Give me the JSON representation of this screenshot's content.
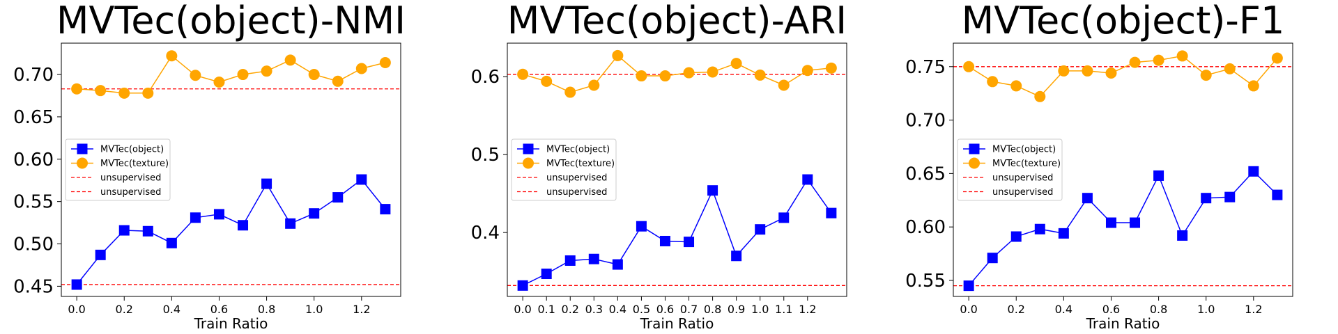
{
  "chart_data": [
    {
      "type": "line",
      "title": "MVTec(object)-NMI",
      "xlabel": "Train Ratio",
      "ylabel": "",
      "x": [
        0.0,
        0.1,
        0.2,
        0.3,
        0.4,
        0.5,
        0.6,
        0.7,
        0.8,
        0.9,
        1.0,
        1.1,
        1.2,
        1.3
      ],
      "xticks": [
        "0.0",
        "0.2",
        "0.4",
        "0.6",
        "0.8",
        "1.0",
        "1.2"
      ],
      "xlim": [
        -0.065,
        1.365
      ],
      "yticks": [
        "0.45",
        "0.50",
        "0.55",
        "0.60",
        "0.65",
        "0.70"
      ],
      "ylim": [
        0.438,
        0.737
      ],
      "legend_position": "center-left",
      "grid": false,
      "series": [
        {
          "name": "MVTec(object)",
          "color": "#0000ff",
          "marker": "square",
          "values": [
            0.452,
            0.487,
            0.516,
            0.515,
            0.501,
            0.531,
            0.535,
            0.522,
            0.571,
            0.524,
            0.536,
            0.555,
            0.576,
            0.541
          ]
        },
        {
          "name": "MVTec(texture)",
          "color": "#ffa500",
          "marker": "circle",
          "values": [
            0.683,
            0.681,
            0.678,
            0.678,
            0.722,
            0.699,
            0.691,
            0.7,
            0.704,
            0.717,
            0.7,
            0.692,
            0.707,
            0.714
          ]
        }
      ],
      "reference_lines": [
        {
          "name": "unsupervised",
          "color": "#ff0000",
          "y": 0.452
        },
        {
          "name": "unsupervised",
          "color": "#ff0000",
          "y": 0.683
        }
      ]
    },
    {
      "type": "line",
      "title": "MVTec(object)-ARI",
      "xlabel": "Train Ratio",
      "ylabel": "",
      "x": [
        0.0,
        0.1,
        0.2,
        0.3,
        0.4,
        0.5,
        0.6,
        0.7,
        0.8,
        0.9,
        1.0,
        1.1,
        1.2,
        1.3
      ],
      "xticks": [
        "0.0",
        "0.1",
        "0.2",
        "0.3",
        "0.4",
        "0.5",
        "0.6",
        "0.7",
        "0.8",
        "0.9",
        "1.0",
        "1.1",
        "1.2"
      ],
      "xlim": [
        -0.065,
        1.365
      ],
      "yticks": [
        "0.4",
        "0.5",
        "0.6"
      ],
      "ylim": [
        0.318,
        0.643
      ],
      "legend_position": "center-left",
      "grid": false,
      "series": [
        {
          "name": "MVTec(object)",
          "color": "#0000ff",
          "marker": "square",
          "values": [
            0.332,
            0.347,
            0.364,
            0.366,
            0.359,
            0.408,
            0.389,
            0.388,
            0.454,
            0.37,
            0.404,
            0.419,
            0.468,
            0.425
          ]
        },
        {
          "name": "MVTec(texture)",
          "color": "#ffa500",
          "marker": "circle",
          "values": [
            0.603,
            0.594,
            0.58,
            0.589,
            0.627,
            0.601,
            0.601,
            0.605,
            0.606,
            0.617,
            0.602,
            0.589,
            0.608,
            0.611
          ]
        }
      ],
      "reference_lines": [
        {
          "name": "unsupervised",
          "color": "#ff0000",
          "y": 0.332
        },
        {
          "name": "unsupervised",
          "color": "#ff0000",
          "y": 0.603
        }
      ]
    },
    {
      "type": "line",
      "title": "MVTec(object)-F1",
      "xlabel": "Train Ratio",
      "ylabel": "",
      "x": [
        0.0,
        0.1,
        0.2,
        0.3,
        0.4,
        0.5,
        0.6,
        0.7,
        0.8,
        0.9,
        1.0,
        1.1,
        1.2,
        1.3
      ],
      "xticks": [
        "0.0",
        "0.2",
        "0.4",
        "0.6",
        "0.8",
        "1.0",
        "1.2"
      ],
      "xlim": [
        -0.065,
        1.365
      ],
      "yticks": [
        "0.55",
        "0.60",
        "0.65",
        "0.70",
        "0.75"
      ],
      "ylim": [
        0.535,
        0.772
      ],
      "legend_position": "center-left",
      "grid": false,
      "series": [
        {
          "name": "MVTec(object)",
          "color": "#0000ff",
          "marker": "square",
          "values": [
            0.545,
            0.571,
            0.591,
            0.598,
            0.594,
            0.627,
            0.604,
            0.604,
            0.648,
            0.592,
            0.627,
            0.628,
            0.652,
            0.63
          ]
        },
        {
          "name": "MVTec(texture)",
          "color": "#ffa500",
          "marker": "circle",
          "values": [
            0.75,
            0.736,
            0.732,
            0.722,
            0.746,
            0.746,
            0.744,
            0.754,
            0.756,
            0.76,
            0.742,
            0.748,
            0.732,
            0.758
          ]
        }
      ],
      "reference_lines": [
        {
          "name": "unsupervised",
          "color": "#ff0000",
          "y": 0.545
        },
        {
          "name": "unsupervised",
          "color": "#ff0000",
          "y": 0.75
        }
      ]
    }
  ]
}
